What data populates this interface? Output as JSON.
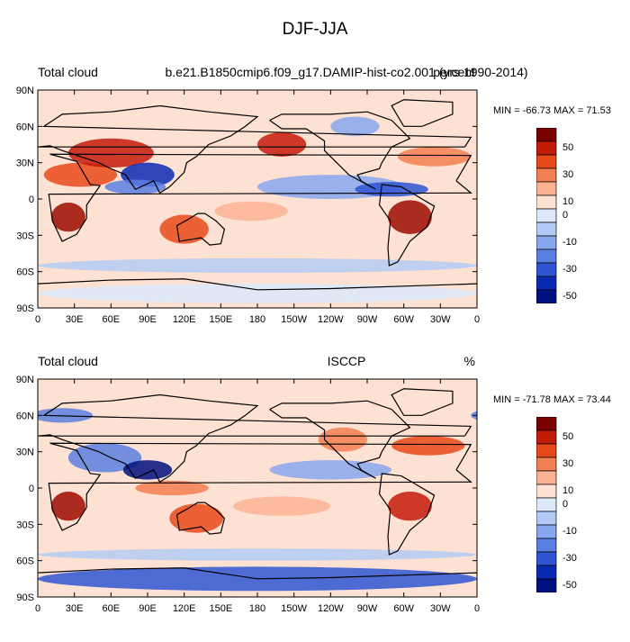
{
  "title": "DJF-JJA",
  "panels": [
    {
      "left_label": "Total cloud",
      "center_label": "b.e21.B1850cmip6.f09_g17.DAMIP-hist-co2.001 (yrs 1990-2014)",
      "right_label": "percent",
      "minmax": "MIN = -66.73 MAX =  71.53"
    },
    {
      "left_label": "Total cloud",
      "center_label": "ISCCP",
      "right_label": "%",
      "minmax": "MIN = -71.78 MAX =  73.44"
    }
  ],
  "axes": {
    "lat_ticks": [
      "90N",
      "60N",
      "30N",
      "0",
      "30S",
      "60S",
      "90S"
    ],
    "lon_ticks": [
      "0",
      "30E",
      "60E",
      "90E",
      "120E",
      "150E",
      "180",
      "150W",
      "120W",
      "90W",
      "60W",
      "30W",
      "0"
    ]
  },
  "colorbar": {
    "labels": [
      "50",
      "30",
      "10",
      "0",
      "-10",
      "-30",
      "-50"
    ],
    "colors": [
      "#7a0000",
      "#c41a0a",
      "#e8491a",
      "#f47f52",
      "#fbb396",
      "#fde1d2",
      "#dce9fb",
      "#b3cbf6",
      "#87a7ee",
      "#5a7ee2",
      "#2f55d3",
      "#0b2ab4",
      "#001080"
    ]
  }
}
